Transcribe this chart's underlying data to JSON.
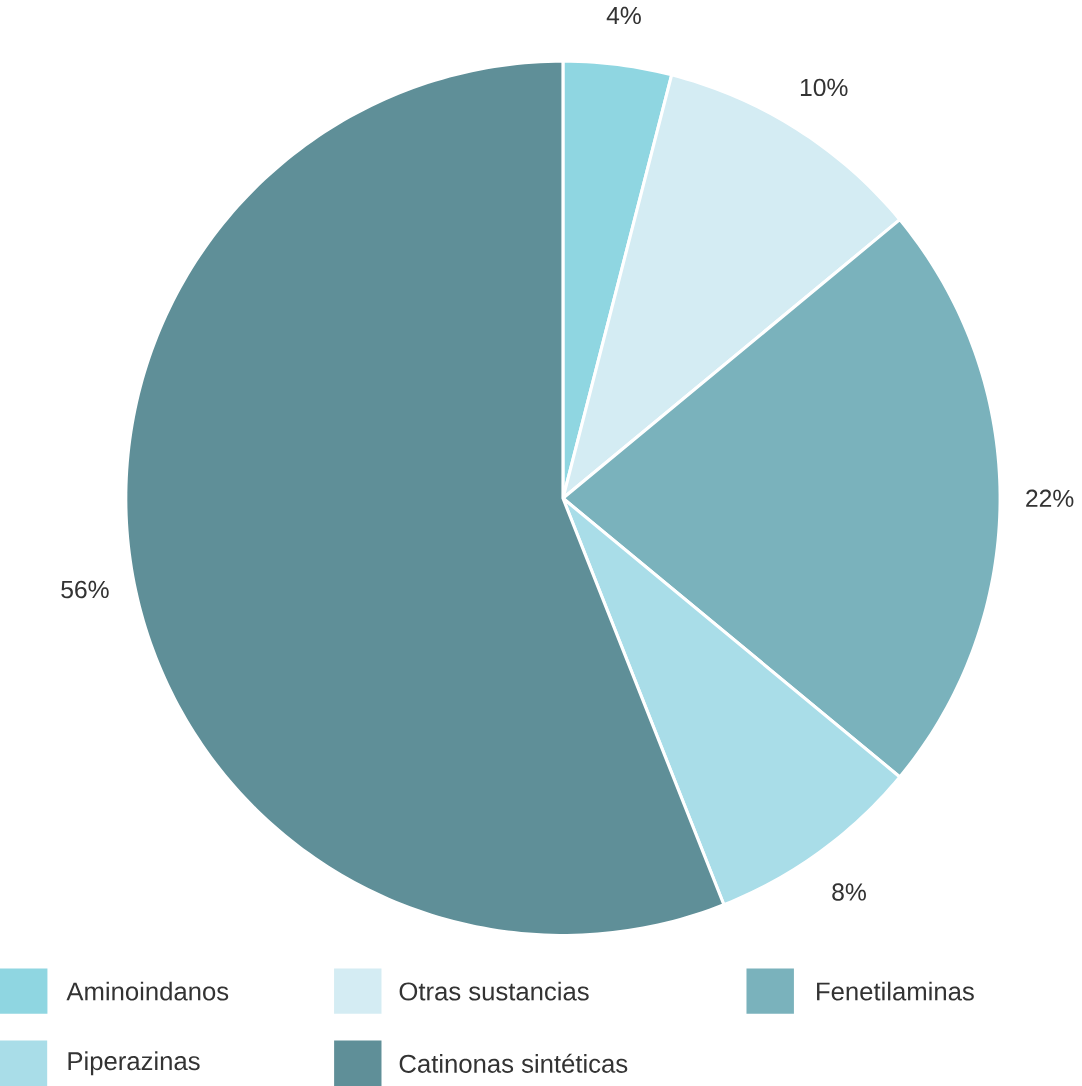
{
  "chart_data": {
    "type": "pie",
    "categories": [
      "Aminoindanos",
      "Otras sustancias",
      "Fenetilaminas",
      "Piperazinas",
      "Catinonas sintéticas"
    ],
    "values": [
      4,
      10,
      22,
      8,
      56
    ],
    "value_labels": [
      "4%",
      "10%",
      "22%",
      "8%",
      "56%"
    ],
    "colors": [
      "#8fd6e1",
      "#d4ecf3",
      "#7ab2bc",
      "#a9dde8",
      "#5f8f98"
    ],
    "legend": "bottom"
  }
}
